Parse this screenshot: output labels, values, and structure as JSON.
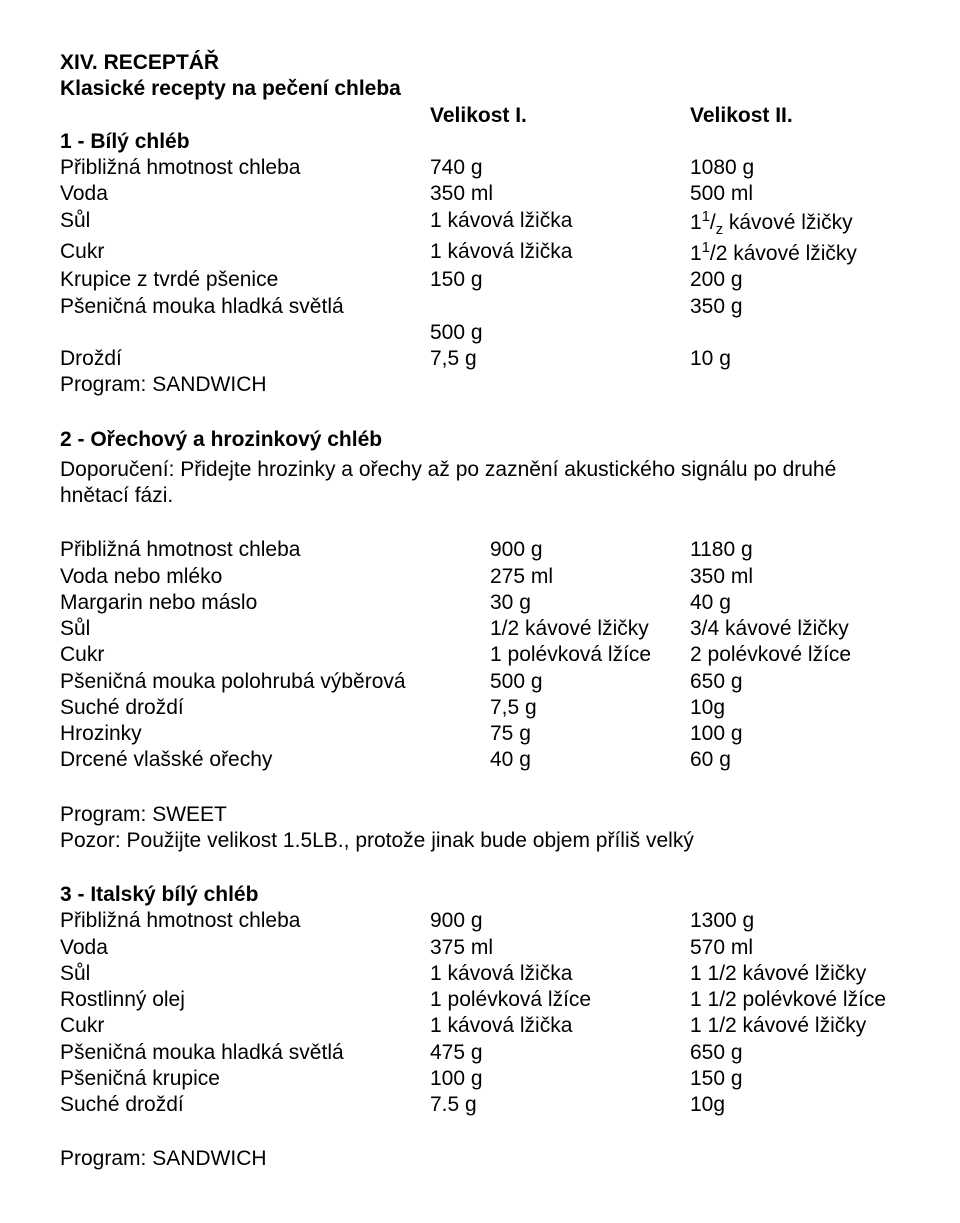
{
  "title_line1": "XIV. RECEPTÁŘ",
  "title_line2": "Klasické recepty na pečení chleba",
  "size_col1": "Velikost I.",
  "size_col2": "Velikost II.",
  "r1": {
    "title": "1 - Bílý chléb",
    "rows": [
      [
        "Přibližná hmotnost chleba",
        "740 g",
        "1080 g"
      ],
      [
        "Voda",
        "350 ml",
        "500 ml"
      ]
    ],
    "sul_label": "Sůl",
    "sul_v1": "1 kávová lžička",
    "sul_v2_pre": "1",
    "sul_v2_sup": "1",
    "sul_v2_sub": "z",
    "sul_v2_post": " kávové lžičky",
    "cukr_label": "Cukr",
    "cukr_v1": "1 kávová lžička",
    "cukr_v2_pre": "1",
    "cukr_v2_sup": "1",
    "cukr_v2_post": "/2 kávové lžičky",
    "rows2": [
      [
        "Krupice z tvrdé pšenice",
        "150 g",
        "200 g"
      ],
      [
        "Pšeničná mouka hladká světlá",
        "",
        "350 g"
      ],
      [
        "",
        "500 g",
        ""
      ],
      [
        "Droždí",
        "7,5 g",
        "10 g"
      ]
    ],
    "program": "Program: SANDWICH"
  },
  "r2": {
    "title": "2 - Ořechový a hrozinkový chléb",
    "note": "Doporučení: Přidejte hrozinky a ořechy až po zaznění akustického signálu po druhé hnětací fázi.",
    "rows": [
      [
        "Přibližná hmotnost chleba",
        "900 g",
        "1180 g"
      ],
      [
        "Voda nebo mléko",
        "275 ml",
        "350 ml"
      ],
      [
        "Margarin nebo máslo",
        "30 g",
        "40 g"
      ],
      [
        "Sůl",
        "1/2 kávové lžičky",
        "3/4 kávové lžičky"
      ],
      [
        "Cukr",
        "1 polévková lžíce",
        "2 polévkové lžíce"
      ],
      [
        "Pšeničná mouka polohrubá výběrová",
        "500 g",
        "650 g"
      ],
      [
        "Suché droždí",
        "7,5 g",
        "10g"
      ],
      [
        "Hrozinky",
        "75 g",
        "100 g"
      ],
      [
        "Drcené vlašské ořechy",
        "40 g",
        "60 g"
      ]
    ],
    "program": "Program: SWEET",
    "warn": "Pozor: Použijte velikost 1.5LB., protože jinak bude objem příliš velký"
  },
  "r3": {
    "title": "3 - Italský bílý chléb",
    "rows": [
      [
        "Přibližná hmotnost chleba",
        "900 g",
        "1300 g"
      ],
      [
        "Voda",
        "375 ml",
        "570 ml"
      ],
      [
        "Sůl",
        "1 kávová lžička",
        "1 1/2 kávové lžičky"
      ],
      [
        "Rostlinný olej",
        "1 polévková lžíce",
        "1 1/2 polévkové lžíce"
      ],
      [
        "Cukr",
        "1 kávová lžička",
        "1 1/2 kávové lžičky"
      ],
      [
        "Pšeničná mouka hladká světlá",
        "475 g",
        "650 g"
      ],
      [
        "Pšeničná krupice",
        "100 g",
        "150 g"
      ],
      [
        "Suché droždí",
        "7.5 g",
        "10g"
      ]
    ],
    "program": "Program: SANDWICH"
  }
}
